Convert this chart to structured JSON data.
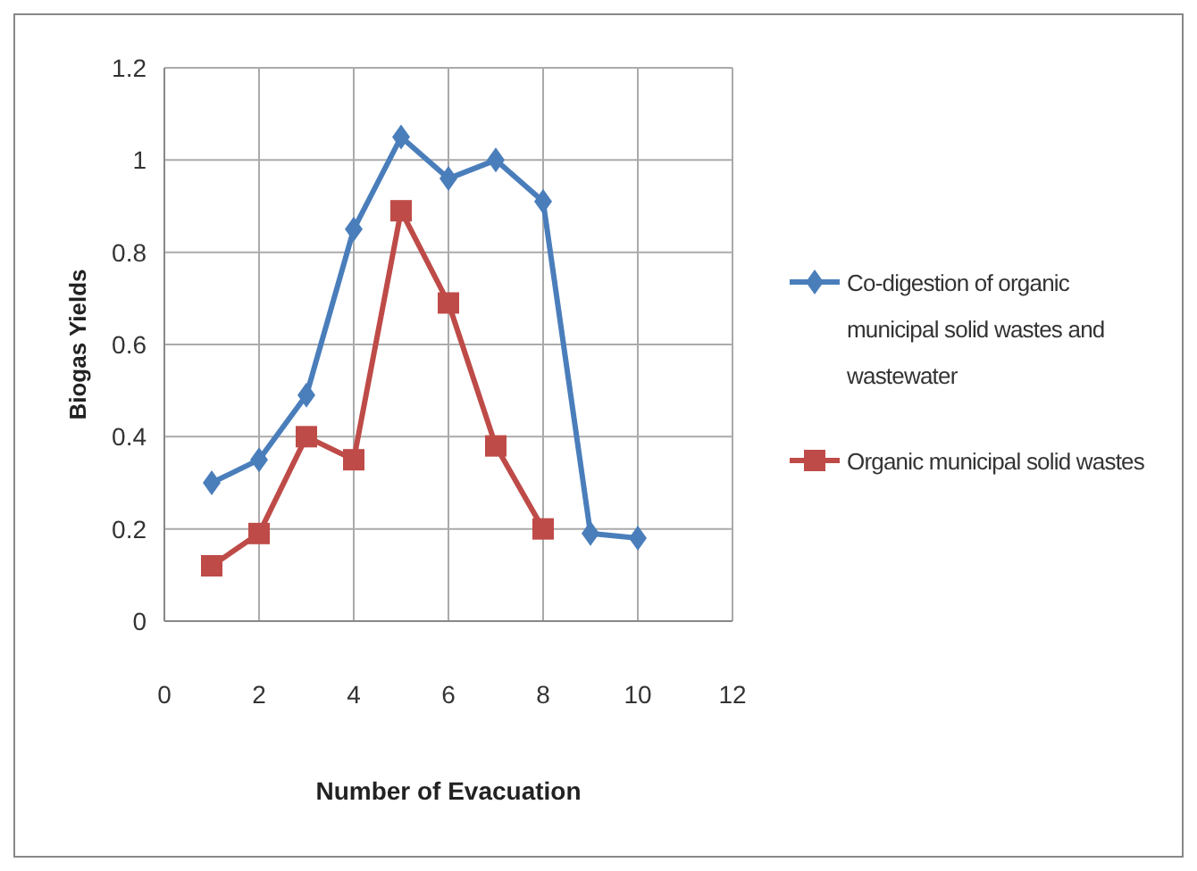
{
  "chart_data": {
    "type": "line",
    "xlabel": "Number of Evacuation",
    "ylabel": "Biogas Yields",
    "xlim": [
      0,
      12
    ],
    "xticks": [
      0,
      2,
      4,
      6,
      8,
      10,
      12
    ],
    "ylim": [
      0,
      1.2
    ],
    "yticks": [
      0,
      0.2,
      0.4,
      0.6,
      0.8,
      1,
      1.2
    ],
    "grid": true,
    "legend": "right",
    "series": [
      {
        "name": "Co-digestion of organic municipal solid wastes and wastewater",
        "color": "#4a7ebb",
        "marker": "diamond",
        "x": [
          1,
          2,
          3,
          4,
          5,
          6,
          7,
          8,
          9,
          10
        ],
        "values": [
          0.3,
          0.35,
          0.49,
          0.85,
          1.05,
          0.96,
          1.0,
          0.91,
          0.19,
          0.18
        ]
      },
      {
        "name": "Organic municipal solid wastes",
        "color": "#be4b48",
        "marker": "square",
        "x": [
          1,
          2,
          3,
          4,
          5,
          6,
          7,
          8
        ],
        "values": [
          0.12,
          0.19,
          0.4,
          0.35,
          0.89,
          0.69,
          0.38,
          0.2
        ]
      }
    ]
  }
}
